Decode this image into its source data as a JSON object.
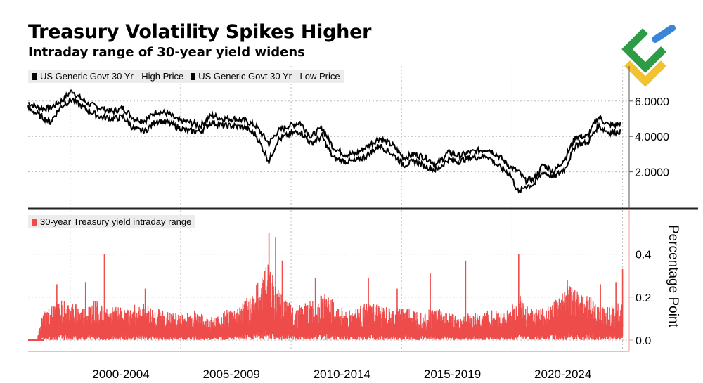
{
  "header": {
    "title": "Treasury Volatility Spikes Higher",
    "subtitle": "Intraday range of 30-year yield widens"
  },
  "logo": {
    "icon": "brand-logo-icon",
    "colors": [
      "#2e9c47",
      "#3a86d6",
      "#f2c230"
    ]
  },
  "colors": {
    "price": "#000000",
    "range": "#ee4b4b",
    "grid": "#bbbbbb",
    "divider": "#222222"
  },
  "chart_data": [
    {
      "type": "line",
      "legend": [
        "US Generic Govt 30 Yr - High Price",
        "US Generic Govt 30 Yr - Low Price"
      ],
      "yticks": [
        "6.0000",
        "4.0000",
        "2.0000"
      ],
      "ylim": [
        0,
        8
      ],
      "grid": true,
      "legend_position": "top-left",
      "x": [
        1998.0,
        1998.5,
        1999.0,
        1999.5,
        2000.0,
        2000.3,
        2000.8,
        2001.3,
        2001.8,
        2002.3,
        2002.8,
        2003.3,
        2003.8,
        2004.3,
        2004.8,
        2005.3,
        2005.8,
        2006.3,
        2006.8,
        2007.3,
        2007.8,
        2008.3,
        2008.9,
        2009.3,
        2009.8,
        2010.3,
        2010.8,
        2011.3,
        2011.8,
        2012.3,
        2012.8,
        2013.3,
        2013.9,
        2014.5,
        2015.0,
        2015.5,
        2016.0,
        2016.5,
        2017.0,
        2017.5,
        2018.0,
        2018.8,
        2019.3,
        2019.8,
        2020.2,
        2020.5,
        2020.9,
        2021.3,
        2021.8,
        2022.3,
        2022.8,
        2023.3,
        2023.8,
        2024.3,
        2024.8
      ],
      "high": [
        5.9,
        5.6,
        5.6,
        6.0,
        6.6,
        6.2,
        5.8,
        5.6,
        5.4,
        5.6,
        5.0,
        4.9,
        5.4,
        5.3,
        4.9,
        4.8,
        4.6,
        5.2,
        5.0,
        5.0,
        4.9,
        4.6,
        3.6,
        4.3,
        4.6,
        4.8,
        4.0,
        4.5,
        3.4,
        3.0,
        3.0,
        3.4,
        3.9,
        3.5,
        2.8,
        3.0,
        2.8,
        2.4,
        3.1,
        2.9,
        3.1,
        3.3,
        2.9,
        2.3,
        2.0,
        1.5,
        1.6,
        2.4,
        2.0,
        2.8,
        4.0,
        4.0,
        5.1,
        4.6,
        4.7
      ],
      "low": [
        5.6,
        5.2,
        4.8,
        5.7,
        6.1,
        5.8,
        5.4,
        5.1,
        5.0,
        5.1,
        4.4,
        4.3,
        4.9,
        4.8,
        4.5,
        4.3,
        4.3,
        4.8,
        4.6,
        4.6,
        4.5,
        4.1,
        2.6,
        3.8,
        4.1,
        4.3,
        3.6,
        4.0,
        2.8,
        2.6,
        2.6,
        2.9,
        3.5,
        3.0,
        2.4,
        2.6,
        2.3,
        2.1,
        2.7,
        2.6,
        2.8,
        2.9,
        2.3,
        1.9,
        0.8,
        1.2,
        1.3,
        2.0,
        1.7,
        2.2,
        3.6,
        3.6,
        4.6,
        4.2,
        4.3
      ]
    },
    {
      "type": "area",
      "legend": [
        "30-year Treasury yield intraday range"
      ],
      "ylabel": "Percentage Point",
      "yticks": [
        "0.4",
        "0.2",
        "0.0"
      ],
      "ylim": [
        0,
        0.55
      ],
      "grid": true,
      "legend_position": "top-left",
      "x": [
        1998.0,
        1998.4,
        1998.7,
        1999.0,
        1999.5,
        2000.0,
        2000.5,
        2001.0,
        2001.5,
        2002.0,
        2002.5,
        2003.0,
        2003.5,
        2004.0,
        2004.5,
        2005.0,
        2005.5,
        2006.0,
        2006.5,
        2007.0,
        2007.5,
        2008.0,
        2008.5,
        2008.9,
        2009.2,
        2009.6,
        2010.0,
        2010.5,
        2011.0,
        2011.5,
        2012.0,
        2012.5,
        2013.0,
        2013.5,
        2014.0,
        2014.5,
        2015.0,
        2015.5,
        2016.0,
        2016.5,
        2017.0,
        2017.5,
        2018.0,
        2018.5,
        2019.0,
        2019.5,
        2020.0,
        2020.2,
        2020.5,
        2021.0,
        2021.5,
        2022.0,
        2022.5,
        2023.0,
        2023.5,
        2024.0,
        2024.5,
        2024.9
      ],
      "range": [
        0.0,
        0.0,
        0.09,
        0.1,
        0.12,
        0.11,
        0.1,
        0.12,
        0.09,
        0.1,
        0.09,
        0.11,
        0.1,
        0.09,
        0.08,
        0.08,
        0.09,
        0.07,
        0.07,
        0.09,
        0.1,
        0.13,
        0.18,
        0.24,
        0.16,
        0.12,
        0.1,
        0.11,
        0.12,
        0.14,
        0.1,
        0.09,
        0.1,
        0.11,
        0.1,
        0.09,
        0.1,
        0.09,
        0.09,
        0.1,
        0.08,
        0.07,
        0.08,
        0.08,
        0.09,
        0.08,
        0.11,
        0.15,
        0.1,
        0.09,
        0.1,
        0.13,
        0.16,
        0.15,
        0.12,
        0.1,
        0.1,
        0.12
      ],
      "spikes": [
        {
          "x": 1999.3,
          "y": 0.26
        },
        {
          "x": 2000.6,
          "y": 0.27
        },
        {
          "x": 2001.45,
          "y": 0.4
        },
        {
          "x": 2003.3,
          "y": 0.24
        },
        {
          "x": 2008.9,
          "y": 0.5
        },
        {
          "x": 2009.2,
          "y": 0.48
        },
        {
          "x": 2009.5,
          "y": 0.37
        },
        {
          "x": 2011.0,
          "y": 0.29
        },
        {
          "x": 2013.4,
          "y": 0.29
        },
        {
          "x": 2014.7,
          "y": 0.24
        },
        {
          "x": 2016.2,
          "y": 0.31
        },
        {
          "x": 2017.8,
          "y": 0.37
        },
        {
          "x": 2020.2,
          "y": 0.4
        },
        {
          "x": 2022.4,
          "y": 0.28
        },
        {
          "x": 2023.9,
          "y": 0.26
        },
        {
          "x": 2024.6,
          "y": 0.27
        },
        {
          "x": 2024.9,
          "y": 0.33
        }
      ]
    }
  ],
  "xaxis": {
    "ticks": [
      "2000-2004",
      "2005-2009",
      "2010-2014",
      "2015-2019",
      "2020-2024"
    ]
  }
}
